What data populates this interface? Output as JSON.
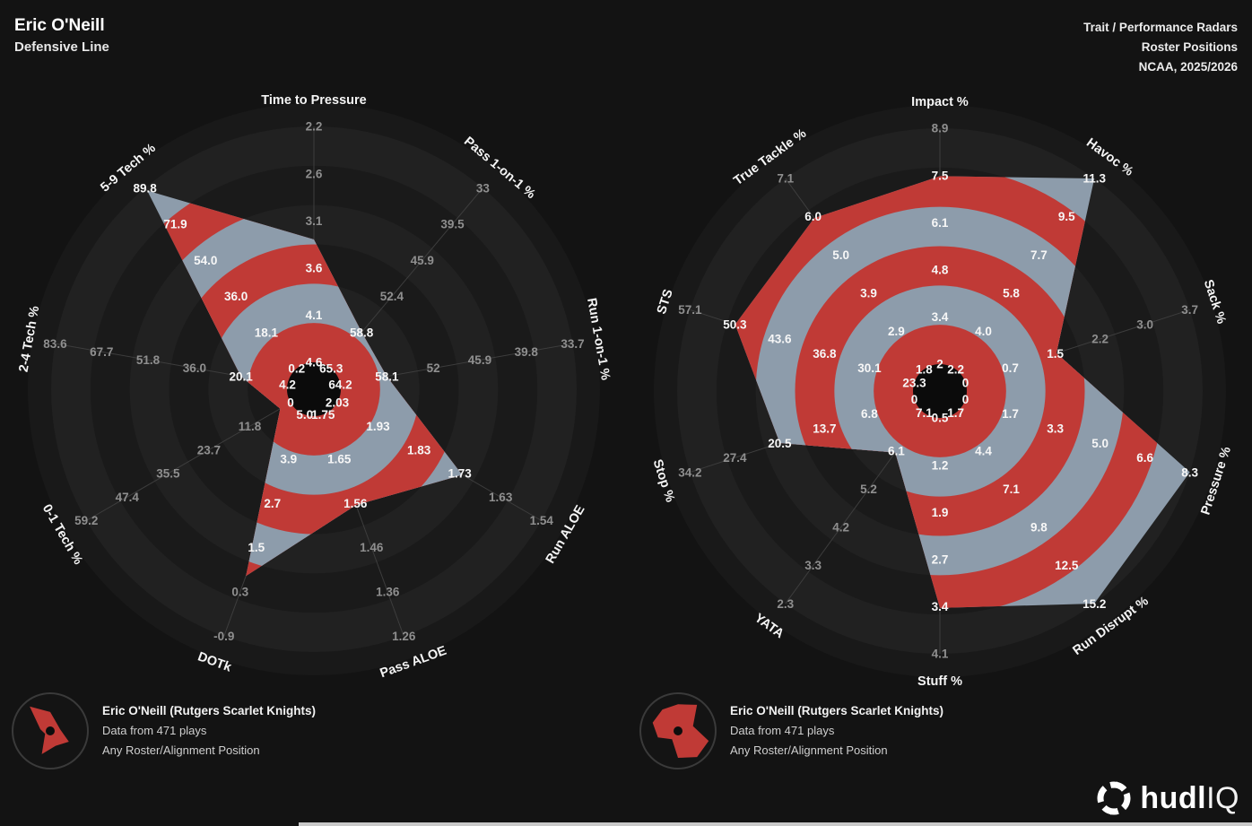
{
  "header": {
    "player": "Eric O'Neill",
    "position": "Defensive Line",
    "report_type": "Trait / Performance Radars",
    "comparison_group": "Roster Positions",
    "league_season": "NCAA, 2025/2026"
  },
  "colors": {
    "background": "#131313",
    "band_red": "#c03a36",
    "band_slate": "#8d9cab",
    "ring_dark": "#1a1a1a",
    "ring_light": "#212121",
    "disc": "#191919",
    "hole": "#0b0b0b",
    "axis_line": "#3d3d3d",
    "tick_outside": "#8f8f8f",
    "tick_inside": "#f7f7f7",
    "bottom_bar": "#c9c9c9"
  },
  "chart_data": [
    {
      "type": "radar",
      "name": "trait-radar",
      "center": [
        350,
        434
      ],
      "axes": [
        {
          "label": "Time to Pressure",
          "rotation": 0,
          "ticks": [
            "2.2",
            "2.6",
            "3.1",
            "3.6",
            "4.1",
            "4.6"
          ],
          "value": 3.35
        },
        {
          "label": "Pass 1-on-1 %",
          "rotation": 40,
          "ticks": [
            "33",
            "39.5",
            "45.9",
            "52.4",
            "58.8",
            "65.3"
          ],
          "value": 58.8
        },
        {
          "label": "Run 1-on-1 %",
          "rotation": 80,
          "ticks": [
            "33.7",
            "39.8",
            "45.9",
            "52",
            "58.1",
            "64.2"
          ],
          "value": 58.1
        },
        {
          "label": "Run ALOE",
          "rotation": -60,
          "ticks": [
            "1.54",
            "1.63",
            "1.73",
            "1.83",
            "1.93",
            "2.03"
          ],
          "value": 1.73
        },
        {
          "label": "Pass ALOE",
          "rotation": -20,
          "ticks": [
            "1.26",
            "1.36",
            "1.46",
            "1.56",
            "1.65",
            "1.75"
          ],
          "value": 1.55
        },
        {
          "label": "DOTk",
          "rotation": 20,
          "ticks": [
            "-0.9",
            "0.3",
            "1.5",
            "2.7",
            "3.9",
            "5.0"
          ],
          "value": 0.7
        },
        {
          "label": "0-1 Tech %",
          "rotation": 60,
          "ticks": [
            "59.2",
            "47.4",
            "35.5",
            "23.7",
            "11.8",
            "0"
          ],
          "value": 3.0
        },
        {
          "label": "2-4 Tech %",
          "rotation": -80,
          "ticks": [
            "83.6",
            "67.7",
            "51.8",
            "36.0",
            "20.1",
            "4.2"
          ],
          "value": 20.1
        },
        {
          "label": "5-9 Tech %",
          "rotation": -40,
          "ticks": [
            "89.8",
            "71.9",
            "54.0",
            "36.0",
            "18.1",
            "0.2"
          ],
          "value": 88.5
        }
      ],
      "ticks_order": "outer-to-inner"
    },
    {
      "type": "radar",
      "name": "performance-radar",
      "center": [
        1048,
        436
      ],
      "axes": [
        {
          "label": "Impact %",
          "rotation": 0,
          "ticks": [
            "8.9",
            "7.5",
            "6.1",
            "4.8",
            "3.4",
            "2"
          ],
          "value": 7.5
        },
        {
          "label": "Havoc %",
          "rotation": 36,
          "ticks": [
            "11.3",
            "9.5",
            "7.7",
            "5.8",
            "4.0",
            "2.2"
          ],
          "value": 11.3
        },
        {
          "label": "Sack %",
          "rotation": 72,
          "ticks": [
            "3.7",
            "3.0",
            "2.2",
            "1.5",
            "0.7",
            "0"
          ],
          "value": 1.5
        },
        {
          "label": "Pressure %",
          "rotation": -72,
          "ticks": [
            "8.3",
            "6.6",
            "5.0",
            "3.3",
            "1.7",
            "0"
          ],
          "value": 8.3
        },
        {
          "label": "Run Disrupt %",
          "rotation": -36,
          "ticks": [
            "15.2",
            "12.5",
            "9.8",
            "7.1",
            "4.4",
            "1.7"
          ],
          "value": 15.2
        },
        {
          "label": "Stuff %",
          "rotation": 0,
          "ticks": [
            "4.1",
            "3.4",
            "2.7",
            "1.9",
            "1.2",
            "0.5"
          ],
          "value": 3.4
        },
        {
          "label": "YATA",
          "rotation": 36,
          "ticks": [
            "2.3",
            "3.3",
            "4.2",
            "5.2",
            "6.1",
            "7.1"
          ],
          "value": 6.1
        },
        {
          "label": "Stop %",
          "rotation": 72,
          "ticks": [
            "34.2",
            "27.4",
            "20.5",
            "13.7",
            "6.8",
            "0"
          ],
          "value": 20.5
        },
        {
          "label": "STS",
          "rotation": -72,
          "ticks": [
            "57.1",
            "50.3",
            "43.6",
            "36.8",
            "30.1",
            "23.3"
          ],
          "value": 50.3
        },
        {
          "label": "True Tackle %",
          "rotation": -36,
          "ticks": [
            "7.1",
            "6.0",
            "5.0",
            "3.9",
            "2.9",
            "1.8"
          ],
          "value": 6.0
        }
      ],
      "ticks_order": "outer-to-inner"
    }
  ],
  "legends": {
    "left": {
      "name": "Eric O'Neill (Rutgers Scarlet Knights)",
      "plays": "Data from 471 plays",
      "scope": "Any Roster/Alignment Position"
    },
    "right": {
      "name": "Eric O'Neill (Rutgers Scarlet Knights)",
      "plays": "Data from 471 plays",
      "scope": "Any Roster/Alignment Position"
    }
  },
  "logo": {
    "brand_bold": "hudl",
    "brand_light": "IQ"
  }
}
